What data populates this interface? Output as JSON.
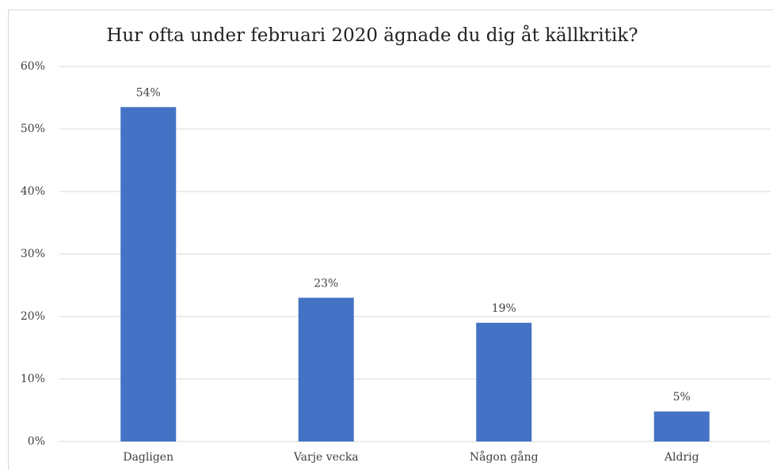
{
  "chart_data": {
    "type": "bar",
    "title": "Hur ofta under februari 2020 ägnade du dig åt källkritik?",
    "categories": [
      "Dagligen",
      "Varje vecka",
      "Någon gång",
      "Aldrig"
    ],
    "values": [
      53.5,
      23,
      19,
      4.8
    ],
    "value_labels": [
      "54%",
      "23%",
      "19%",
      "5%"
    ],
    "color": "#4472c4",
    "ylim": [
      0,
      60
    ],
    "yticks": [
      {
        "value": 0,
        "label": "0%"
      },
      {
        "value": 10,
        "label": "10%"
      },
      {
        "value": 20,
        "label": "20%"
      },
      {
        "value": 30,
        "label": "30%"
      },
      {
        "value": 40,
        "label": "40%"
      },
      {
        "value": 50,
        "label": "50%"
      },
      {
        "value": 60,
        "label": "60%"
      }
    ],
    "grid": true
  }
}
